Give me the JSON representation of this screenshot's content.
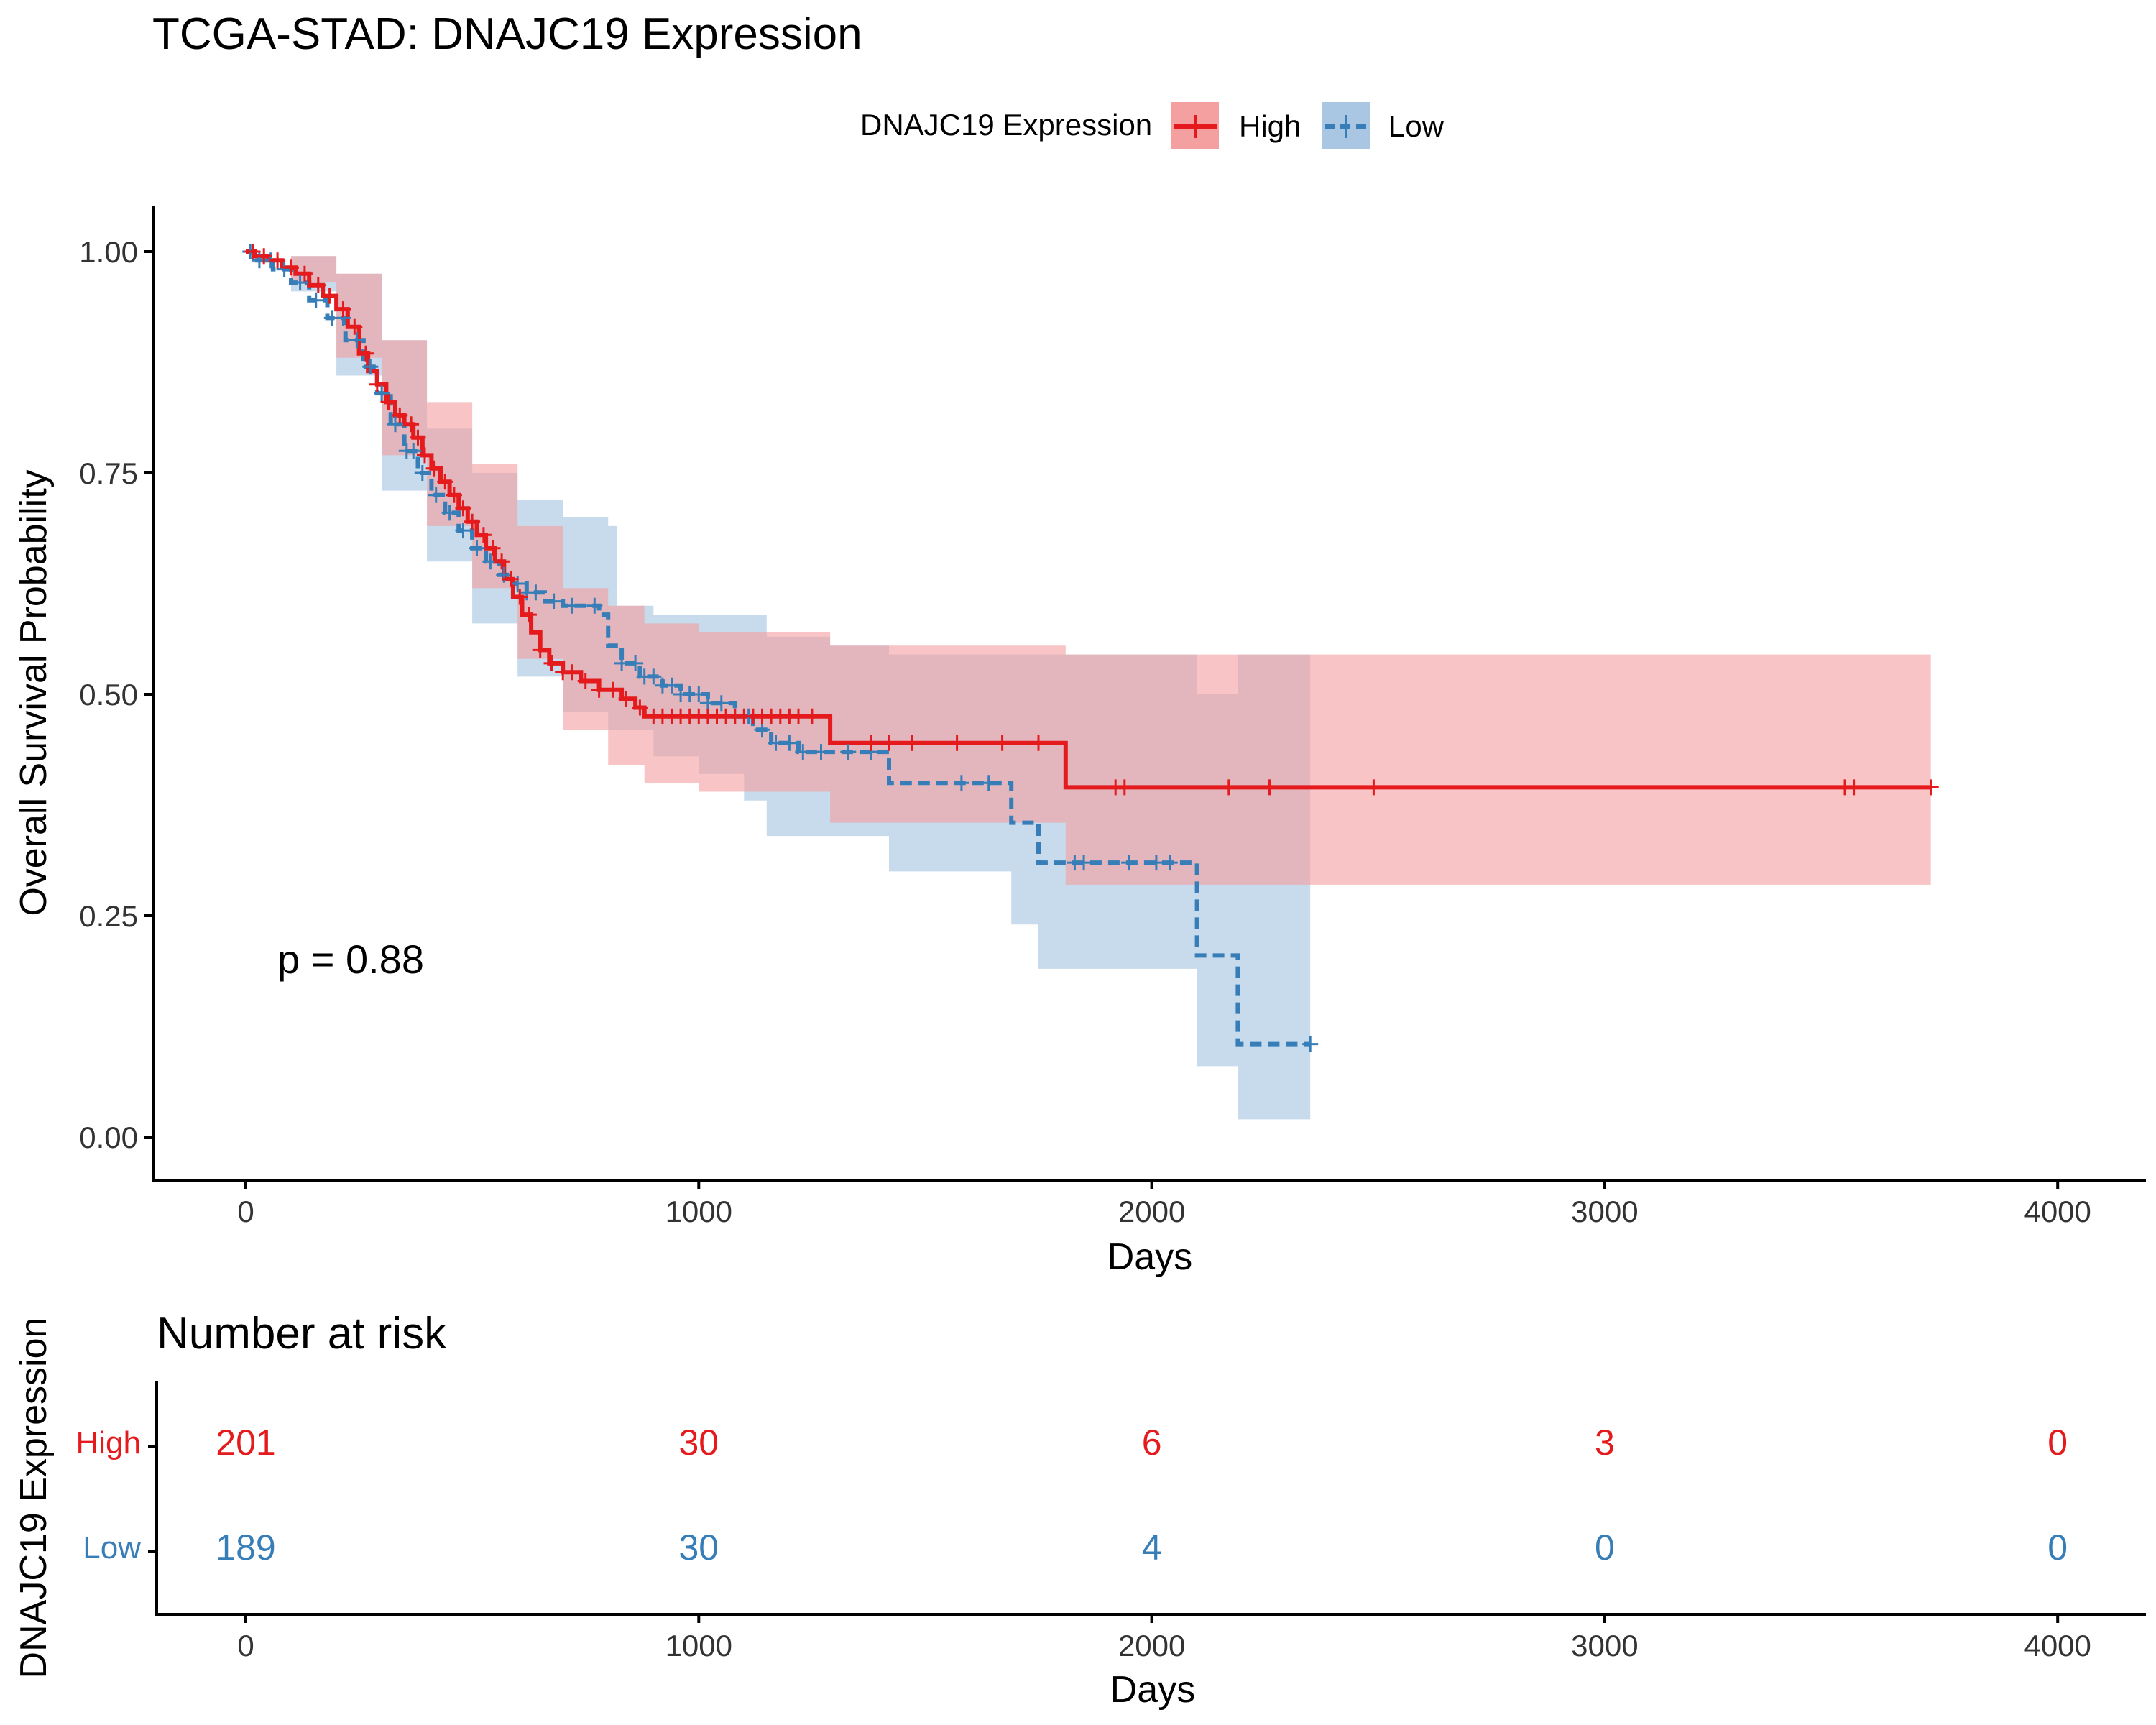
{
  "chart_data": [
    {
      "type": "line",
      "subtype": "kaplan-meier",
      "title": "TCGA-STAD: DNAJC19 Expression",
      "xlabel": "Days",
      "ylabel": "Overall Survival Probability",
      "xlim": [
        -200,
        4200
      ],
      "ylim": [
        -0.05,
        1.05
      ],
      "xticks": [
        0,
        1000,
        2000,
        3000,
        4000
      ],
      "yticks": [
        0.0,
        0.25,
        0.5,
        0.75,
        1.0
      ],
      "ytick_labels": [
        "0.00",
        "0.25",
        "0.50",
        "0.75",
        "1.00"
      ],
      "grid": false,
      "legend": {
        "title": "DNAJC19 Expression",
        "position": "top",
        "entries": [
          "High",
          "Low"
        ]
      },
      "annotation": "p = 0.88",
      "annotation_anchor": {
        "x": 80,
        "y": 0.2
      },
      "colors": {
        "High": "#e41a1c",
        "Low": "#377eb8",
        "High_ci": "#f4a0a1",
        "Low_ci": "#a9c7e2"
      },
      "series": [
        {
          "name": "High",
          "line_style": "solid",
          "steps": [
            [
              0,
              1.0
            ],
            [
              20,
              0.995
            ],
            [
              50,
              0.99
            ],
            [
              80,
              0.982
            ],
            [
              110,
              0.975
            ],
            [
              140,
              0.962
            ],
            [
              170,
              0.95
            ],
            [
              200,
              0.935
            ],
            [
              225,
              0.915
            ],
            [
              250,
              0.885
            ],
            [
              270,
              0.865
            ],
            [
              290,
              0.85
            ],
            [
              310,
              0.83
            ],
            [
              330,
              0.815
            ],
            [
              350,
              0.805
            ],
            [
              370,
              0.79
            ],
            [
              390,
              0.77
            ],
            [
              410,
              0.755
            ],
            [
              430,
              0.74
            ],
            [
              450,
              0.725
            ],
            [
              470,
              0.71
            ],
            [
              490,
              0.695
            ],
            [
              510,
              0.68
            ],
            [
              530,
              0.665
            ],
            [
              550,
              0.65
            ],
            [
              570,
              0.63
            ],
            [
              590,
              0.61
            ],
            [
              610,
              0.59
            ],
            [
              630,
              0.57
            ],
            [
              650,
              0.55
            ],
            [
              670,
              0.535
            ],
            [
              700,
              0.525
            ],
            [
              740,
              0.515
            ],
            [
              780,
              0.505
            ],
            [
              830,
              0.495
            ],
            [
              860,
              0.485
            ],
            [
              880,
              0.475
            ],
            [
              1290,
              0.445
            ],
            [
              1810,
              0.395
            ],
            [
              3720,
              0.395
            ]
          ],
          "ci_upper": [
            [
              0,
              1.0
            ],
            [
              100,
              0.995
            ],
            [
              200,
              0.975
            ],
            [
              300,
              0.9
            ],
            [
              400,
              0.83
            ],
            [
              500,
              0.76
            ],
            [
              600,
              0.69
            ],
            [
              700,
              0.62
            ],
            [
              800,
              0.6
            ],
            [
              880,
              0.58
            ],
            [
              1000,
              0.57
            ],
            [
              1150,
              0.57
            ],
            [
              1290,
              0.555
            ],
            [
              1810,
              0.545
            ],
            [
              3720,
              0.545
            ]
          ],
          "ci_lower": [
            [
              0,
              1.0
            ],
            [
              100,
              0.965
            ],
            [
              200,
              0.88
            ],
            [
              300,
              0.77
            ],
            [
              400,
              0.69
            ],
            [
              500,
              0.62
            ],
            [
              600,
              0.54
            ],
            [
              700,
              0.46
            ],
            [
              800,
              0.42
            ],
            [
              880,
              0.4
            ],
            [
              1000,
              0.39
            ],
            [
              1290,
              0.355
            ],
            [
              1810,
              0.285
            ],
            [
              3720,
              0.285
            ]
          ],
          "censor_days": [
            15,
            40,
            70,
            100,
            130,
            160,
            185,
            215,
            240,
            265,
            290,
            315,
            340,
            365,
            380,
            395,
            415,
            440,
            460,
            480,
            500,
            525,
            545,
            565,
            585,
            605,
            625,
            650,
            675,
            700,
            720,
            750,
            780,
            810,
            840,
            870,
            900,
            920,
            940,
            960,
            980,
            1000,
            1020,
            1040,
            1060,
            1080,
            1100,
            1120,
            1140,
            1160,
            1180,
            1200,
            1220,
            1250,
            1380,
            1420,
            1470,
            1570,
            1670,
            1750,
            1920,
            1940,
            2170,
            2260,
            2490,
            3530,
            3550,
            3720
          ]
        },
        {
          "name": "Low",
          "line_style": "dashed",
          "steps": [
            [
              0,
              1.0
            ],
            [
              20,
              0.99
            ],
            [
              60,
              0.98
            ],
            [
              100,
              0.965
            ],
            [
              140,
              0.945
            ],
            [
              180,
              0.925
            ],
            [
              220,
              0.9
            ],
            [
              260,
              0.87
            ],
            [
              290,
              0.84
            ],
            [
              320,
              0.805
            ],
            [
              350,
              0.775
            ],
            [
              380,
              0.75
            ],
            [
              410,
              0.725
            ],
            [
              440,
              0.705
            ],
            [
              470,
              0.685
            ],
            [
              500,
              0.665
            ],
            [
              530,
              0.65
            ],
            [
              560,
              0.635
            ],
            [
              590,
              0.625
            ],
            [
              620,
              0.615
            ],
            [
              660,
              0.605
            ],
            [
              700,
              0.6
            ],
            [
              780,
              0.59
            ],
            [
              800,
              0.555
            ],
            [
              830,
              0.535
            ],
            [
              870,
              0.52
            ],
            [
              920,
              0.51
            ],
            [
              960,
              0.5
            ],
            [
              1020,
              0.49
            ],
            [
              1080,
              0.475
            ],
            [
              1120,
              0.46
            ],
            [
              1160,
              0.445
            ],
            [
              1220,
              0.435
            ],
            [
              1420,
              0.4
            ],
            [
              1690,
              0.355
            ],
            [
              1750,
              0.31
            ],
            [
              1920,
              0.31
            ],
            [
              2100,
              0.205
            ],
            [
              2190,
              0.105
            ],
            [
              2350,
              0.105
            ]
          ],
          "ci_upper": [
            [
              0,
              1.0
            ],
            [
              100,
              0.995
            ],
            [
              200,
              0.975
            ],
            [
              300,
              0.9
            ],
            [
              400,
              0.8
            ],
            [
              500,
              0.75
            ],
            [
              600,
              0.72
            ],
            [
              700,
              0.7
            ],
            [
              800,
              0.69
            ],
            [
              820,
              0.6
            ],
            [
              900,
              0.59
            ],
            [
              1000,
              0.59
            ],
            [
              1150,
              0.565
            ],
            [
              1290,
              0.555
            ],
            [
              1420,
              0.545
            ],
            [
              1690,
              0.545
            ],
            [
              1750,
              0.545
            ],
            [
              2100,
              0.5
            ],
            [
              2190,
              0.545
            ],
            [
              2350,
              0.545
            ]
          ],
          "ci_lower": [
            [
              0,
              1.0
            ],
            [
              100,
              0.955
            ],
            [
              200,
              0.86
            ],
            [
              300,
              0.73
            ],
            [
              400,
              0.65
            ],
            [
              500,
              0.58
            ],
            [
              600,
              0.52
            ],
            [
              700,
              0.48
            ],
            [
              800,
              0.46
            ],
            [
              900,
              0.43
            ],
            [
              1000,
              0.41
            ],
            [
              1100,
              0.38
            ],
            [
              1150,
              0.34
            ],
            [
              1290,
              0.34
            ],
            [
              1420,
              0.3
            ],
            [
              1690,
              0.24
            ],
            [
              1750,
              0.19
            ],
            [
              2100,
              0.08
            ],
            [
              2190,
              0.02
            ],
            [
              2350,
              0.02
            ]
          ],
          "censor_days": [
            10,
            30,
            55,
            85,
            120,
            155,
            190,
            215,
            245,
            275,
            300,
            330,
            355,
            370,
            390,
            420,
            450,
            480,
            510,
            540,
            570,
            600,
            620,
            640,
            680,
            720,
            770,
            830,
            860,
            880,
            900,
            920,
            940,
            960,
            980,
            1000,
            1020,
            1050,
            1080,
            1110,
            1140,
            1170,
            1200,
            1230,
            1270,
            1330,
            1380,
            1580,
            1640,
            1830,
            1850,
            1950,
            2010,
            2040,
            2350
          ]
        }
      ]
    },
    {
      "type": "table",
      "title": "Number at risk",
      "xlabel": "Days",
      "ylabel": "DNAJC19 Expression",
      "xlim": [
        -200,
        4200
      ],
      "xticks": [
        0,
        1000,
        2000,
        3000,
        4000
      ],
      "rows": [
        {
          "name": "High",
          "values": [
            201,
            30,
            6,
            3,
            0
          ]
        },
        {
          "name": "Low",
          "values": [
            189,
            30,
            4,
            0,
            0
          ]
        }
      ]
    }
  ]
}
